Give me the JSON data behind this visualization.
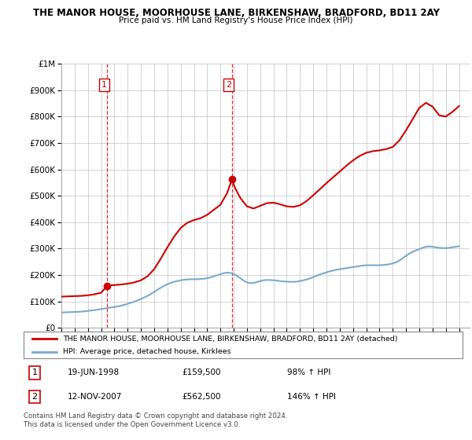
{
  "title": "THE MANOR HOUSE, MOORHOUSE LANE, BIRKENSHAW, BRADFORD, BD11 2AY",
  "subtitle": "Price paid vs. HM Land Registry's House Price Index (HPI)",
  "legend_label_red": "THE MANOR HOUSE, MOORHOUSE LANE, BIRKENSHAW, BRADFORD, BD11 2AY (detached)",
  "legend_label_blue": "HPI: Average price, detached house, Kirklees",
  "transaction_1": {
    "num": "1",
    "date": "19-JUN-1998",
    "price": 159500,
    "pct": "98% ↑ HPI"
  },
  "transaction_2": {
    "num": "2",
    "date": "12-NOV-2007",
    "price": 562500,
    "pct": "146% ↑ HPI"
  },
  "footer": "Contains HM Land Registry data © Crown copyright and database right 2024.\nThis data is licensed under the Open Government Licence v3.0.",
  "ylim": [
    0,
    1000000
  ],
  "yticks": [
    0,
    100000,
    200000,
    300000,
    400000,
    500000,
    600000,
    700000,
    800000,
    900000,
    1000000
  ],
  "background_color": "#ffffff",
  "grid_color": "#cccccc",
  "red_color": "#cc0000",
  "blue_color": "#7aabca",
  "vline_color": "#cc0000",
  "marker1_year": 1998.47,
  "marker1_price": 159500,
  "marker2_year": 2007.87,
  "marker2_price": 562500,
  "xmin": 1995.0,
  "xmax": 2025.8,
  "hpi_data": [
    [
      1995.0,
      58000
    ],
    [
      1995.25,
      58500
    ],
    [
      1995.5,
      59000
    ],
    [
      1995.75,
      59500
    ],
    [
      1996.0,
      60000
    ],
    [
      1996.25,
      60500
    ],
    [
      1996.5,
      61500
    ],
    [
      1996.75,
      62500
    ],
    [
      1997.0,
      64000
    ],
    [
      1997.25,
      65500
    ],
    [
      1997.5,
      67000
    ],
    [
      1997.75,
      69000
    ],
    [
      1998.0,
      71000
    ],
    [
      1998.25,
      73000
    ],
    [
      1998.5,
      75000
    ],
    [
      1998.75,
      77000
    ],
    [
      1999.0,
      79000
    ],
    [
      1999.25,
      81000
    ],
    [
      1999.5,
      84000
    ],
    [
      1999.75,
      87000
    ],
    [
      2000.0,
      91000
    ],
    [
      2000.25,
      95000
    ],
    [
      2000.5,
      99000
    ],
    [
      2000.75,
      104000
    ],
    [
      2001.0,
      109000
    ],
    [
      2001.25,
      115000
    ],
    [
      2001.5,
      121000
    ],
    [
      2001.75,
      128000
    ],
    [
      2002.0,
      136000
    ],
    [
      2002.25,
      144000
    ],
    [
      2002.5,
      152000
    ],
    [
      2002.75,
      159000
    ],
    [
      2003.0,
      165000
    ],
    [
      2003.25,
      170000
    ],
    [
      2003.5,
      174000
    ],
    [
      2003.75,
      177000
    ],
    [
      2004.0,
      180000
    ],
    [
      2004.25,
      182000
    ],
    [
      2004.5,
      183000
    ],
    [
      2004.75,
      184000
    ],
    [
      2005.0,
      184000
    ],
    [
      2005.25,
      184000
    ],
    [
      2005.5,
      185000
    ],
    [
      2005.75,
      186000
    ],
    [
      2006.0,
      188000
    ],
    [
      2006.25,
      191000
    ],
    [
      2006.5,
      195000
    ],
    [
      2006.75,
      199000
    ],
    [
      2007.0,
      203000
    ],
    [
      2007.25,
      207000
    ],
    [
      2007.5,
      209000
    ],
    [
      2007.75,
      208000
    ],
    [
      2008.0,
      204000
    ],
    [
      2008.25,
      197000
    ],
    [
      2008.5,
      188000
    ],
    [
      2008.75,
      179000
    ],
    [
      2009.0,
      172000
    ],
    [
      2009.25,
      169000
    ],
    [
      2009.5,
      170000
    ],
    [
      2009.75,
      173000
    ],
    [
      2010.0,
      177000
    ],
    [
      2010.25,
      180000
    ],
    [
      2010.5,
      181000
    ],
    [
      2010.75,
      181000
    ],
    [
      2011.0,
      180000
    ],
    [
      2011.25,
      179000
    ],
    [
      2011.5,
      177000
    ],
    [
      2011.75,
      176000
    ],
    [
      2012.0,
      175000
    ],
    [
      2012.25,
      174000
    ],
    [
      2012.5,
      174000
    ],
    [
      2012.75,
      175000
    ],
    [
      2013.0,
      177000
    ],
    [
      2013.25,
      180000
    ],
    [
      2013.5,
      183000
    ],
    [
      2013.75,
      187000
    ],
    [
      2014.0,
      192000
    ],
    [
      2014.25,
      197000
    ],
    [
      2014.5,
      202000
    ],
    [
      2014.75,
      206000
    ],
    [
      2015.0,
      210000
    ],
    [
      2015.25,
      214000
    ],
    [
      2015.5,
      217000
    ],
    [
      2015.75,
      220000
    ],
    [
      2016.0,
      222000
    ],
    [
      2016.25,
      224000
    ],
    [
      2016.5,
      226000
    ],
    [
      2016.75,
      228000
    ],
    [
      2017.0,
      230000
    ],
    [
      2017.25,
      232000
    ],
    [
      2017.5,
      234000
    ],
    [
      2017.75,
      236000
    ],
    [
      2018.0,
      237000
    ],
    [
      2018.25,
      237000
    ],
    [
      2018.5,
      237000
    ],
    [
      2018.75,
      237000
    ],
    [
      2019.0,
      237000
    ],
    [
      2019.25,
      238000
    ],
    [
      2019.5,
      239000
    ],
    [
      2019.75,
      241000
    ],
    [
      2020.0,
      244000
    ],
    [
      2020.25,
      248000
    ],
    [
      2020.5,
      255000
    ],
    [
      2020.75,
      264000
    ],
    [
      2021.0,
      273000
    ],
    [
      2021.25,
      281000
    ],
    [
      2021.5,
      288000
    ],
    [
      2021.75,
      293000
    ],
    [
      2022.0,
      298000
    ],
    [
      2022.25,
      303000
    ],
    [
      2022.5,
      307000
    ],
    [
      2022.75,
      308000
    ],
    [
      2023.0,
      307000
    ],
    [
      2023.25,
      305000
    ],
    [
      2023.5,
      303000
    ],
    [
      2023.75,
      302000
    ],
    [
      2024.0,
      302000
    ],
    [
      2024.25,
      303000
    ],
    [
      2024.5,
      305000
    ],
    [
      2024.75,
      307000
    ],
    [
      2025.0,
      309000
    ]
  ],
  "property_data": [
    [
      1995.0,
      118000
    ],
    [
      1995.5,
      119000
    ],
    [
      1996.0,
      120000
    ],
    [
      1996.5,
      121000
    ],
    [
      1997.0,
      123000
    ],
    [
      1997.5,
      127000
    ],
    [
      1998.0,
      133000
    ],
    [
      1998.47,
      159500
    ],
    [
      1999.0,
      162000
    ],
    [
      1999.5,
      164000
    ],
    [
      2000.0,
      167000
    ],
    [
      2000.5,
      172000
    ],
    [
      2001.0,
      180000
    ],
    [
      2001.5,
      195000
    ],
    [
      2002.0,
      222000
    ],
    [
      2002.5,
      262000
    ],
    [
      2003.0,
      305000
    ],
    [
      2003.5,
      345000
    ],
    [
      2004.0,
      378000
    ],
    [
      2004.5,
      398000
    ],
    [
      2005.0,
      408000
    ],
    [
      2005.5,
      415000
    ],
    [
      2006.0,
      428000
    ],
    [
      2006.5,
      447000
    ],
    [
      2007.0,
      466000
    ],
    [
      2007.5,
      510000
    ],
    [
      2007.87,
      562500
    ],
    [
      2008.1,
      530000
    ],
    [
      2008.5,
      492000
    ],
    [
      2009.0,
      460000
    ],
    [
      2009.5,
      452000
    ],
    [
      2010.0,
      462000
    ],
    [
      2010.5,
      472000
    ],
    [
      2011.0,
      474000
    ],
    [
      2011.5,
      468000
    ],
    [
      2012.0,
      460000
    ],
    [
      2012.5,
      458000
    ],
    [
      2013.0,
      464000
    ],
    [
      2013.5,
      480000
    ],
    [
      2014.0,
      502000
    ],
    [
      2014.5,
      525000
    ],
    [
      2015.0,
      548000
    ],
    [
      2015.5,
      570000
    ],
    [
      2016.0,
      592000
    ],
    [
      2016.5,
      614000
    ],
    [
      2017.0,
      634000
    ],
    [
      2017.5,
      651000
    ],
    [
      2018.0,
      663000
    ],
    [
      2018.5,
      669000
    ],
    [
      2019.0,
      672000
    ],
    [
      2019.5,
      677000
    ],
    [
      2020.0,
      685000
    ],
    [
      2020.5,
      710000
    ],
    [
      2021.0,
      748000
    ],
    [
      2021.5,
      790000
    ],
    [
      2022.0,
      833000
    ],
    [
      2022.5,
      852000
    ],
    [
      2023.0,
      838000
    ],
    [
      2023.5,
      805000
    ],
    [
      2024.0,
      800000
    ],
    [
      2024.5,
      818000
    ],
    [
      2025.0,
      840000
    ]
  ]
}
